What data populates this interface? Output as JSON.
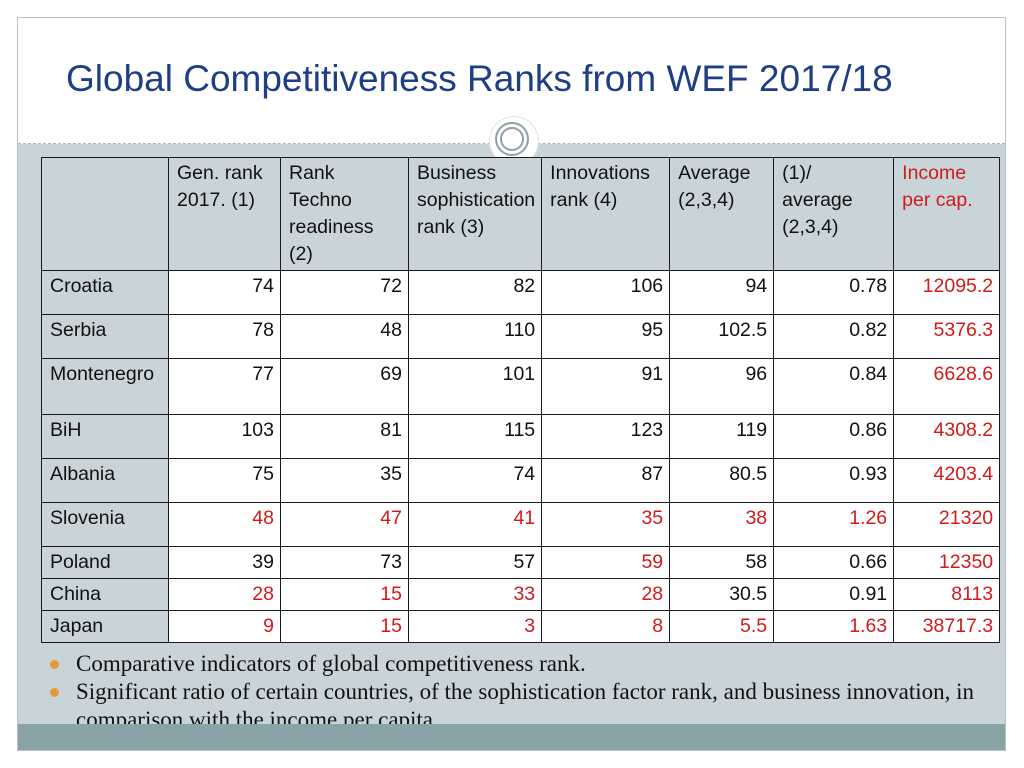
{
  "title": "Global Competitiveness Ranks from WEF 2017/18",
  "table": {
    "headers": [
      "",
      "Gen. rank 2017. (1)",
      "Rank Techno readiness (2)",
      "Business sophistication rank (3)",
      "Innovations rank (4)",
      "Average (2,3,4)",
      "(1)/ average (2,3,4)",
      "Income per cap."
    ],
    "rows": [
      {
        "country": "Croatia",
        "values": [
          "74",
          "72",
          "82",
          "106",
          "94",
          "0.78",
          "12095.2"
        ]
      },
      {
        "country": "Serbia",
        "values": [
          "78",
          "48",
          "110",
          "95",
          "102.5",
          "0.82",
          "5376.3"
        ]
      },
      {
        "country": "Montenegro",
        "values": [
          "77",
          "69",
          "101",
          "91",
          "96",
          "0.84",
          "6628.6"
        ]
      },
      {
        "country": "BiH",
        "values": [
          "103",
          "81",
          "115",
          "123",
          "119",
          "0.86",
          "4308.2"
        ]
      },
      {
        "country": "Albania",
        "values": [
          "75",
          "35",
          "74",
          "87",
          "80.5",
          "0.93",
          "4203.4"
        ]
      },
      {
        "country": "Slovenia",
        "values": [
          "48",
          "47",
          "41",
          "35",
          "38",
          "1.26",
          "21320"
        ]
      },
      {
        "country": "Poland",
        "values": [
          "39",
          "73",
          "57",
          "59",
          "58",
          "0.66",
          "12350"
        ]
      },
      {
        "country": "China",
        "values": [
          "28",
          "15",
          "33",
          "28",
          "30.5",
          "0.91",
          "8113"
        ]
      },
      {
        "country": "Japan",
        "values": [
          "9",
          "15",
          "3",
          "8",
          "5.5",
          "1.63",
          "38717.3"
        ]
      }
    ]
  },
  "bullets": [
    "Comparative indicators of global competitiveness rank.",
    "Significant ratio of certain countries, of the sophistication factor rank, and business innovation, in comparison with the income per capita"
  ],
  "colors": {
    "title": "#1f3f84",
    "highlight": "#d11a1a",
    "bullet": "#e39a3b",
    "slide_background": "#c9d4d8"
  }
}
